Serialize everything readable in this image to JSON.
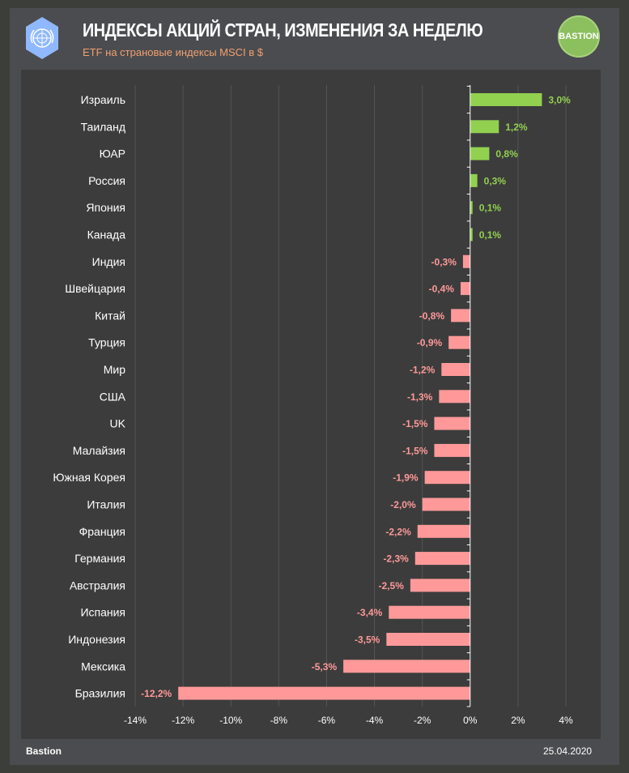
{
  "header": {
    "title": "ИНДЕКСЫ АКЦИЙ СТРАН, ИЗМЕНЕНИЯ ЗА НЕДЕЛЮ",
    "subtitle": "ETF на страновые индексы MSCI  в $",
    "brand_badge": "BASTION",
    "logo_icon": "un-emblem-icon"
  },
  "footer": {
    "source": "Bastion",
    "date": "25.04.2020"
  },
  "colors": {
    "positive": "#92d050",
    "negative": "#ff9999",
    "positive_label": "#92d050",
    "negative_label": "#ff9999",
    "grid": "#555555",
    "axis": "#ffffff"
  },
  "chart_data": {
    "type": "bar",
    "orientation": "horizontal",
    "title": "ИНДЕКСЫ АКЦИЙ СТРАН, ИЗМЕНЕНИЯ ЗА НЕДЕЛЮ",
    "xlabel": "",
    "ylabel": "",
    "xlim": [
      -14,
      4
    ],
    "xticks": [
      -14,
      -12,
      -10,
      -8,
      -6,
      -4,
      -2,
      0,
      2,
      4
    ],
    "xtick_labels": [
      "-14%",
      "-12%",
      "-10%",
      "-8%",
      "-6%",
      "-4%",
      "-2%",
      "0%",
      "2%",
      "4%"
    ],
    "grid": true,
    "categories": [
      "Израиль",
      "Таиланд",
      "ЮАР",
      "Россия",
      "Япония",
      "Канада",
      "Индия",
      "Швейцария",
      "Китай",
      "Турция",
      "Мир",
      "США",
      "UK",
      "Малайзия",
      "Южная Корея",
      "Италия",
      "Франция",
      "Германия",
      "Австралия",
      "Испания",
      "Индонезия",
      "Мексика",
      "Бразилия"
    ],
    "values": [
      3.0,
      1.2,
      0.8,
      0.3,
      0.1,
      0.1,
      -0.3,
      -0.4,
      -0.8,
      -0.9,
      -1.2,
      -1.3,
      -1.5,
      -1.5,
      -1.9,
      -2.0,
      -2.2,
      -2.3,
      -2.5,
      -3.4,
      -3.5,
      -5.3,
      -12.2
    ],
    "data_labels": [
      "3,0%",
      "1,2%",
      "0,8%",
      "0,3%",
      "0,1%",
      "0,1%",
      "-0,3%",
      "-0,4%",
      "-0,8%",
      "-0,9%",
      "-1,2%",
      "-1,3%",
      "-1,5%",
      "-1,5%",
      "-1,9%",
      "-2,0%",
      "-2,2%",
      "-2,3%",
      "-2,5%",
      "-3,4%",
      "-3,5%",
      "-5,3%",
      "-12,2%"
    ]
  }
}
